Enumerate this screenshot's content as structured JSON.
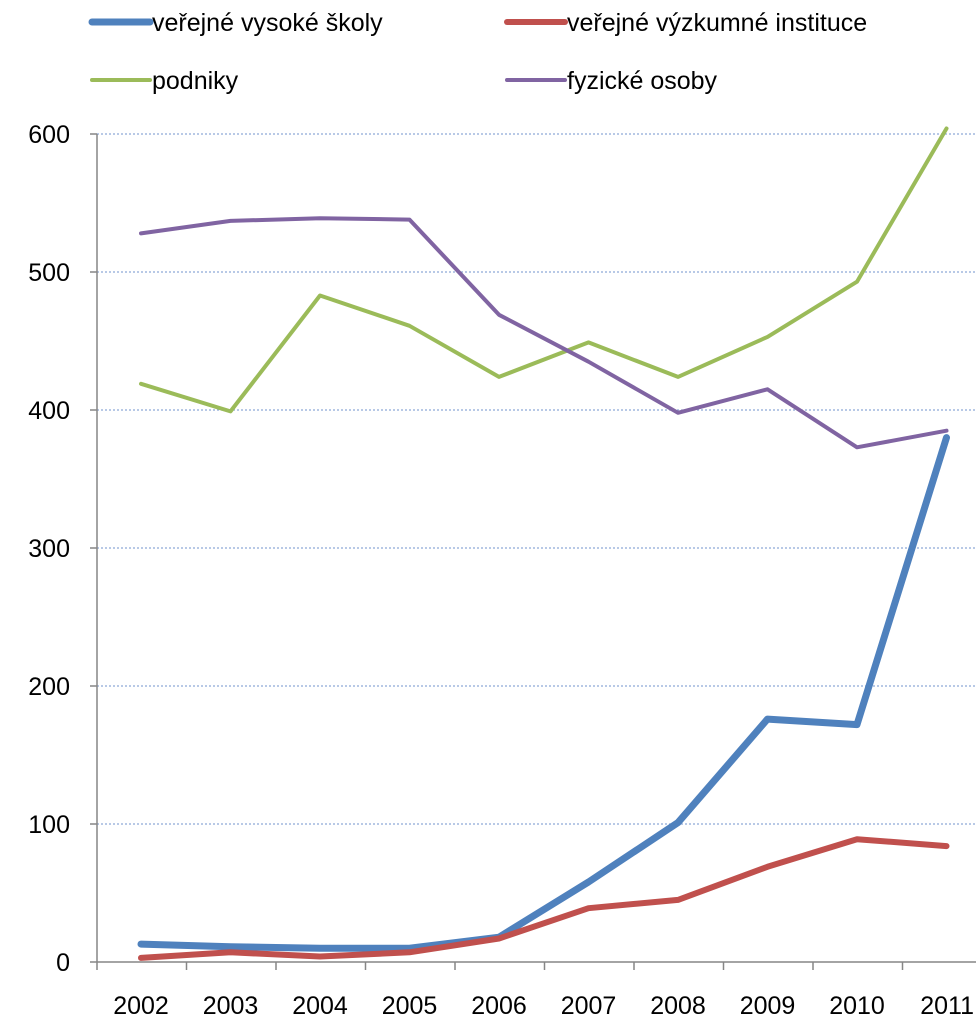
{
  "chart_data": {
    "type": "line",
    "title": "",
    "xlabel": "",
    "ylabel": "",
    "x": [
      "2002",
      "2003",
      "2004",
      "2005",
      "2006",
      "2007",
      "2008",
      "2009",
      "2010",
      "2011"
    ],
    "ylim": [
      0,
      600
    ],
    "yticks": [
      0,
      100,
      200,
      300,
      400,
      500,
      600
    ],
    "grid": "horizontal dotted",
    "legend_position": "top",
    "series": [
      {
        "name": "veřejné vysoké školy",
        "color": "#4f81bd",
        "values": [
          13,
          11,
          10,
          10,
          18,
          58,
          101,
          176,
          172,
          380
        ]
      },
      {
        "name": "veřejné výzkumné instituce",
        "color": "#c0504d",
        "values": [
          3,
          7,
          4,
          7,
          17,
          39,
          45,
          69,
          89,
          84
        ]
      },
      {
        "name": "podniky",
        "color": "#9bbb59",
        "values": [
          419,
          399,
          483,
          461,
          424,
          449,
          424,
          453,
          493,
          604
        ]
      },
      {
        "name": "fyzické osoby",
        "color": "#8064a2",
        "values": [
          528,
          537,
          539,
          538,
          469,
          435,
          398,
          415,
          373,
          385
        ]
      }
    ]
  }
}
